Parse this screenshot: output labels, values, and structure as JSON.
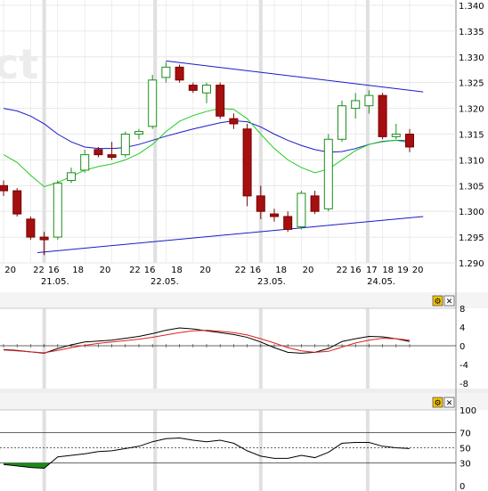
{
  "watermark": "ct",
  "panel_buttons": {
    "macd": {
      "config": "⚙",
      "close": "✕"
    },
    "osc": {
      "config": "⚙",
      "close": "✕"
    }
  },
  "colors": {
    "up_fill": "#ffffff",
    "up_stroke": "#1a8f1a",
    "down_fill": "#a50f0f",
    "down_stroke": "#7a0000",
    "ma_fast": "#22cc22",
    "ma_slow": "#1a1acc",
    "trendline": "#1a1acc",
    "signal": "#e02020",
    "macd_line": "#000000",
    "osc_fill": "#1a8a1a",
    "grid": "#e3e3e3",
    "session_bar": "#cccccc",
    "panel_bg": "#f4f4f4"
  },
  "chart_data": [
    {
      "type": "candlestick",
      "ylim": [
        1.29,
        1.34
      ],
      "y_ticks": [
        "1.340",
        "1.335",
        "1.330",
        "1.325",
        "1.320",
        "1.315",
        "1.310",
        "1.305",
        "1.300",
        "1.295",
        "1.290"
      ],
      "x_hour_ticks": [
        "20",
        "22",
        "16",
        "18",
        "20",
        "22",
        "16",
        "18",
        "20",
        "22",
        "16",
        "18",
        "20",
        "22",
        "16",
        "17",
        "18",
        "19",
        "20"
      ],
      "x_date_labels": [
        "21.05.",
        "22.05.",
        "23.05.",
        "24.05."
      ],
      "candles": [
        {
          "o": 1.305,
          "h": 1.306,
          "l": 1.303,
          "c": 1.304
        },
        {
          "o": 1.304,
          "h": 1.3045,
          "l": 1.299,
          "c": 1.2995
        },
        {
          "o": 1.2985,
          "h": 1.299,
          "l": 1.2945,
          "c": 1.295
        },
        {
          "o": 1.295,
          "h": 1.296,
          "l": 1.2915,
          "c": 1.2945
        },
        {
          "o": 1.295,
          "h": 1.306,
          "l": 1.2945,
          "c": 1.3055
        },
        {
          "o": 1.306,
          "h": 1.3085,
          "l": 1.3055,
          "c": 1.3075
        },
        {
          "o": 1.308,
          "h": 1.312,
          "l": 1.3075,
          "c": 1.311
        },
        {
          "o": 1.312,
          "h": 1.3125,
          "l": 1.3105,
          "c": 1.311
        },
        {
          "o": 1.311,
          "h": 1.3135,
          "l": 1.31,
          "c": 1.3105
        },
        {
          "o": 1.311,
          "h": 1.3155,
          "l": 1.3105,
          "c": 1.315
        },
        {
          "o": 1.315,
          "h": 1.316,
          "l": 1.314,
          "c": 1.3155
        },
        {
          "o": 1.3165,
          "h": 1.3265,
          "l": 1.316,
          "c": 1.3255
        },
        {
          "o": 1.326,
          "h": 1.329,
          "l": 1.325,
          "c": 1.328
        },
        {
          "o": 1.328,
          "h": 1.3285,
          "l": 1.325,
          "c": 1.3255
        },
        {
          "o": 1.3245,
          "h": 1.325,
          "l": 1.323,
          "c": 1.3235
        },
        {
          "o": 1.323,
          "h": 1.325,
          "l": 1.321,
          "c": 1.3245
        },
        {
          "o": 1.3245,
          "h": 1.325,
          "l": 1.318,
          "c": 1.3185
        },
        {
          "o": 1.318,
          "h": 1.319,
          "l": 1.316,
          "c": 1.317
        },
        {
          "o": 1.316,
          "h": 1.317,
          "l": 1.301,
          "c": 1.303
        },
        {
          "o": 1.303,
          "h": 1.305,
          "l": 1.2985,
          "c": 1.3
        },
        {
          "o": 1.2995,
          "h": 1.3005,
          "l": 1.298,
          "c": 1.299
        },
        {
          "o": 1.299,
          "h": 1.3,
          "l": 1.296,
          "c": 1.2965
        },
        {
          "o": 1.297,
          "h": 1.304,
          "l": 1.2965,
          "c": 1.3035
        },
        {
          "o": 1.303,
          "h": 1.304,
          "l": 1.2995,
          "c": 1.3
        },
        {
          "o": 1.3005,
          "h": 1.315,
          "l": 1.3,
          "c": 1.314
        },
        {
          "o": 1.314,
          "h": 1.3215,
          "l": 1.3135,
          "c": 1.3205
        },
        {
          "o": 1.32,
          "h": 1.323,
          "l": 1.318,
          "c": 1.3215
        },
        {
          "o": 1.3205,
          "h": 1.3235,
          "l": 1.319,
          "c": 1.3225
        },
        {
          "o": 1.3225,
          "h": 1.323,
          "l": 1.314,
          "c": 1.3145
        },
        {
          "o": 1.3145,
          "h": 1.317,
          "l": 1.314,
          "c": 1.315
        },
        {
          "o": 1.315,
          "h": 1.316,
          "l": 1.3115,
          "c": 1.3125
        }
      ],
      "ma_slow": [
        1.32,
        1.3195,
        1.3185,
        1.317,
        1.315,
        1.3135,
        1.3125,
        1.3122,
        1.3122,
        1.3124,
        1.313,
        1.3138,
        1.3146,
        1.3153,
        1.316,
        1.3166,
        1.3172,
        1.3176,
        1.3174,
        1.3164,
        1.315,
        1.3138,
        1.3128,
        1.312,
        1.3115,
        1.3116,
        1.3122,
        1.313,
        1.3136,
        1.3138,
        1.3137
      ],
      "ma_fast": [
        1.311,
        1.3095,
        1.307,
        1.3048,
        1.3056,
        1.3068,
        1.308,
        1.3087,
        1.3092,
        1.31,
        1.3112,
        1.313,
        1.3155,
        1.3175,
        1.3186,
        1.3194,
        1.32,
        1.3198,
        1.318,
        1.315,
        1.3122,
        1.31,
        1.3085,
        1.3075,
        1.3082,
        1.31,
        1.3118,
        1.313,
        1.3135,
        1.3138,
        1.3133
      ],
      "trendlines": [
        {
          "from": {
            "i": 12,
            "y": 1.3292
          },
          "to": {
            "i": 31,
            "y": 1.3232
          }
        },
        {
          "from": {
            "i": 2.5,
            "y": 1.292
          },
          "to": {
            "i": 31,
            "y": 1.299
          }
        }
      ]
    },
    {
      "type": "line",
      "ylim": [
        -8,
        8
      ],
      "y_ticks": [
        "8",
        "4",
        "0",
        "-4",
        "-8"
      ],
      "series": [
        {
          "color": "#000000",
          "values": [
            -0.8,
            -1.0,
            -1.3,
            -1.6,
            -0.6,
            0.2,
            0.8,
            1.0,
            1.2,
            1.6,
            2.0,
            2.6,
            3.3,
            3.8,
            3.6,
            3.2,
            2.8,
            2.4,
            1.8,
            0.8,
            -0.4,
            -1.4,
            -1.6,
            -1.4,
            -0.6,
            0.9,
            1.5,
            2.0,
            1.9,
            1.5,
            0.9
          ]
        },
        {
          "color": "#e02020",
          "values": [
            -0.9,
            -1.1,
            -1.3,
            -1.5,
            -1.0,
            -0.4,
            0.1,
            0.5,
            0.8,
            1.1,
            1.4,
            1.8,
            2.3,
            2.8,
            3.2,
            3.3,
            3.1,
            2.8,
            2.3,
            1.5,
            0.6,
            -0.4,
            -1.1,
            -1.4,
            -1.2,
            -0.3,
            0.6,
            1.2,
            1.6,
            1.5,
            1.2
          ]
        }
      ]
    },
    {
      "type": "area",
      "ylim": [
        0,
        100
      ],
      "y_ticks": [
        "100",
        "70",
        "50",
        "30",
        "0"
      ],
      "levels": [
        70,
        50,
        30
      ],
      "series": [
        {
          "color": "#000000",
          "values": [
            28,
            26,
            24,
            23,
            38,
            40,
            42,
            45,
            46,
            49,
            52,
            58,
            62,
            63,
            60,
            58,
            60,
            56,
            46,
            39,
            36,
            36,
            40,
            37,
            44,
            56,
            57,
            57,
            52,
            50,
            49
          ]
        }
      ]
    }
  ]
}
